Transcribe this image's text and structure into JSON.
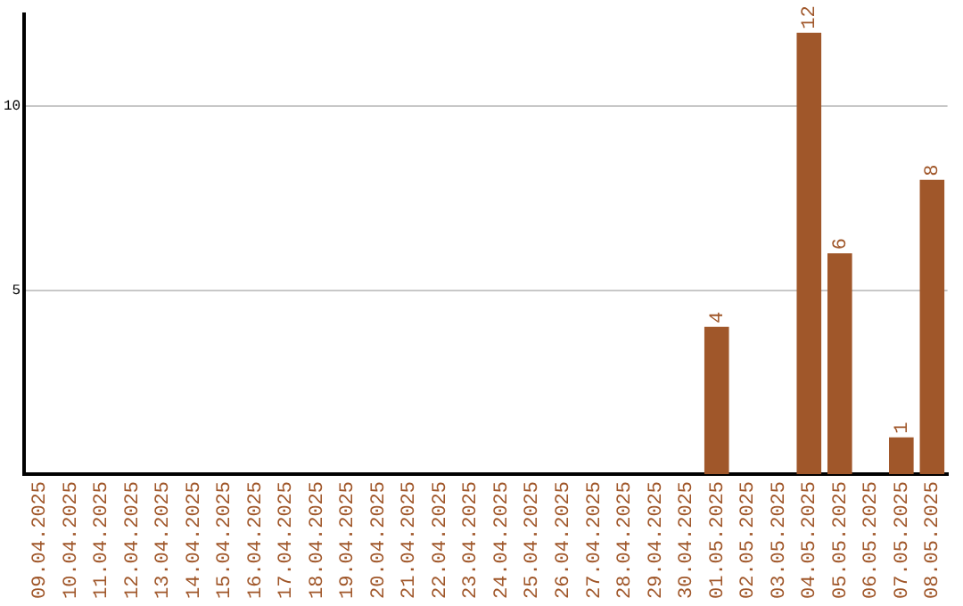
{
  "chart_data": {
    "type": "bar",
    "categories": [
      "09.04.2025",
      "10.04.2025",
      "11.04.2025",
      "12.04.2025",
      "13.04.2025",
      "14.04.2025",
      "15.04.2025",
      "16.04.2025",
      "17.04.2025",
      "18.04.2025",
      "19.04.2025",
      "20.04.2025",
      "21.04.2025",
      "22.04.2025",
      "23.04.2025",
      "24.04.2025",
      "25.04.2025",
      "26.04.2025",
      "27.04.2025",
      "28.04.2025",
      "29.04.2025",
      "30.04.2025",
      "01.05.2025",
      "02.05.2025",
      "03.05.2025",
      "04.05.2025",
      "05.05.2025",
      "06.05.2025",
      "07.05.2025",
      "08.05.2025"
    ],
    "values": [
      0,
      0,
      0,
      0,
      0,
      0,
      0,
      0,
      0,
      0,
      0,
      0,
      0,
      0,
      0,
      0,
      0,
      0,
      0,
      0,
      0,
      0,
      4,
      0,
      0,
      12,
      6,
      0,
      1,
      8
    ],
    "value_labels": [
      null,
      null,
      null,
      null,
      null,
      null,
      null,
      null,
      null,
      null,
      null,
      null,
      null,
      null,
      null,
      null,
      null,
      null,
      null,
      null,
      null,
      null,
      "4",
      null,
      null,
      "12",
      "6",
      null,
      "1",
      "8"
    ],
    "color": "#a0572a",
    "ylim": [
      0,
      12.5
    ],
    "yticks": [
      5,
      10
    ],
    "grid": "y",
    "legend": false
  }
}
